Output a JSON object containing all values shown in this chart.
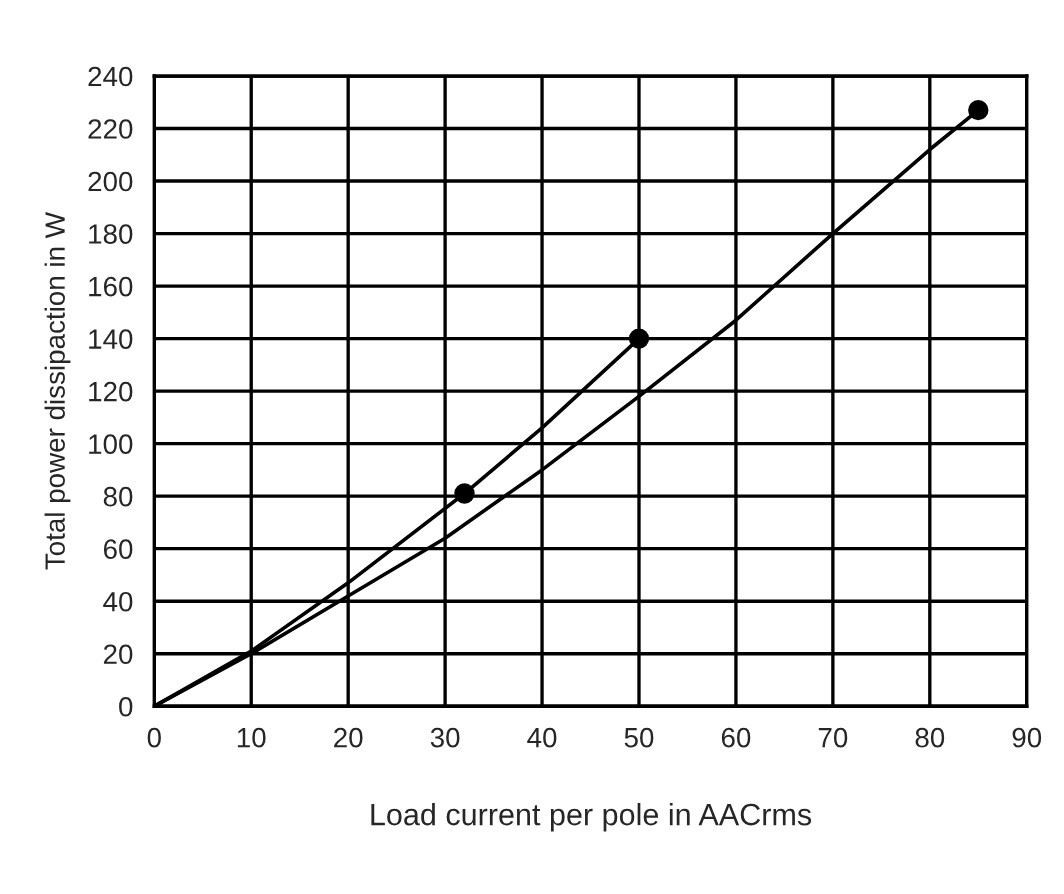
{
  "chart_data": {
    "type": "line",
    "xlabel": "Load current per pole in AACrms",
    "ylabel": "Total power dissipaction in W",
    "xlim": [
      0,
      90
    ],
    "xticks": [
      0,
      10,
      20,
      30,
      40,
      50,
      60,
      70,
      80,
      90
    ],
    "ylim": [
      0,
      240
    ],
    "yticks": [
      0,
      20,
      40,
      60,
      80,
      100,
      120,
      140,
      160,
      180,
      200,
      220,
      240
    ],
    "grid": true,
    "marker": "none",
    "series": [
      {
        "color": "#000000",
        "x": [
          0,
          10,
          20,
          32,
          40,
          50
        ],
        "values": [
          0,
          21,
          47,
          81,
          106,
          140
        ]
      },
      {
        "color": "#000000",
        "x": [
          0,
          10,
          20,
          30,
          40,
          50,
          60,
          70,
          80,
          85
        ],
        "values": [
          0,
          20,
          42,
          64,
          90,
          118,
          147,
          180,
          212,
          227
        ]
      },
      {
        "type": "scatter",
        "marker": "circle",
        "color": "#000000",
        "x": [
          32,
          50,
          85
        ],
        "values": [
          81,
          140,
          227
        ]
      }
    ]
  }
}
